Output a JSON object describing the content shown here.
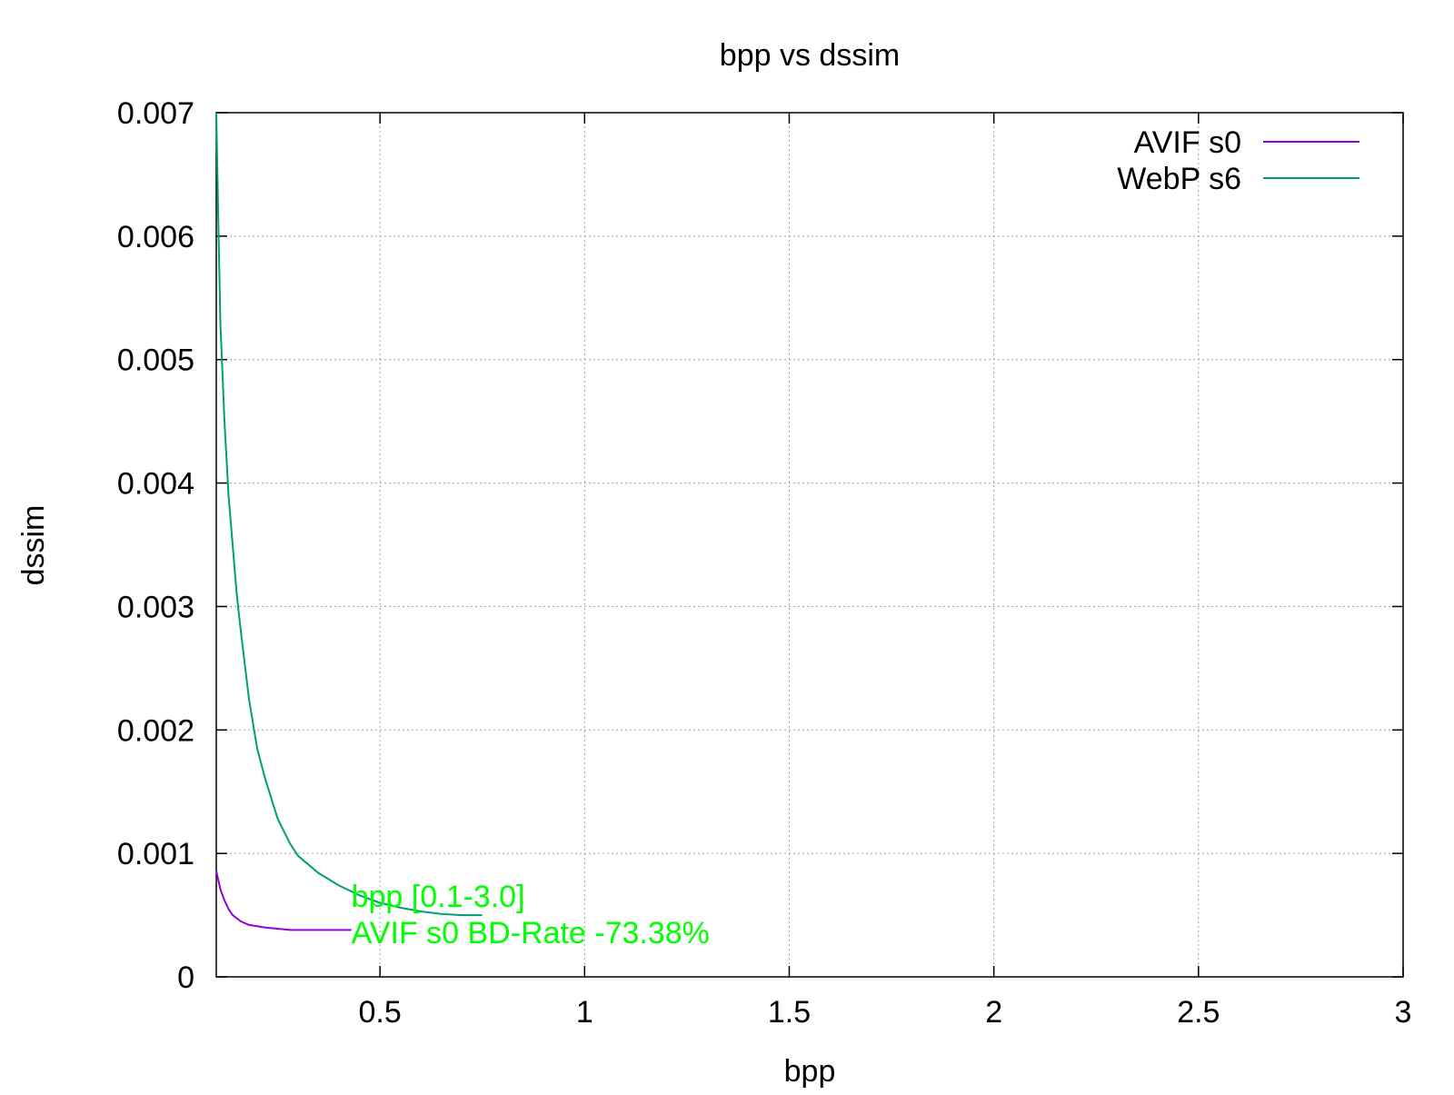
{
  "chart_data": {
    "type": "line",
    "title": "bpp vs dssim",
    "xlabel": "bpp",
    "ylabel": "dssim",
    "xlim": [
      0.1,
      3
    ],
    "ylim": [
      0,
      0.007
    ],
    "x_ticks": [
      {
        "value": 0.5,
        "label": "0.5"
      },
      {
        "value": 1,
        "label": "1"
      },
      {
        "value": 1.5,
        "label": "1.5"
      },
      {
        "value": 2,
        "label": "2"
      },
      {
        "value": 2.5,
        "label": "2.5"
      },
      {
        "value": 3,
        "label": "3"
      }
    ],
    "y_ticks": [
      {
        "value": 0,
        "label": "0"
      },
      {
        "value": 0.001,
        "label": "0.001"
      },
      {
        "value": 0.002,
        "label": "0.002"
      },
      {
        "value": 0.003,
        "label": "0.003"
      },
      {
        "value": 0.004,
        "label": "0.004"
      },
      {
        "value": 0.005,
        "label": "0.005"
      },
      {
        "value": 0.006,
        "label": "0.006"
      },
      {
        "value": 0.007,
        "label": "0.007"
      }
    ],
    "grid": true,
    "grid_color": "#a0a0a0",
    "legend_position": "top-right",
    "series": [
      {
        "name": "AVIF s0",
        "color": "#9400d3",
        "x": [
          0.1,
          0.105,
          0.11,
          0.12,
          0.13,
          0.14,
          0.16,
          0.18,
          0.2,
          0.22,
          0.25,
          0.28,
          0.3,
          0.35,
          0.4,
          0.43
        ],
        "y": [
          0.00086,
          0.00078,
          0.00071,
          0.00062,
          0.00055,
          0.0005,
          0.00045,
          0.00042,
          0.00041,
          0.0004,
          0.00039,
          0.00038,
          0.00038,
          0.00038,
          0.00038,
          0.00038
        ]
      },
      {
        "name": "WebP s6",
        "color": "#009e73",
        "x": [
          0.1,
          0.105,
          0.11,
          0.12,
          0.13,
          0.14,
          0.15,
          0.16,
          0.18,
          0.2,
          0.22,
          0.25,
          0.28,
          0.3,
          0.35,
          0.4,
          0.45,
          0.5,
          0.55,
          0.6,
          0.65,
          0.7,
          0.75
        ],
        "y": [
          0.007,
          0.0061,
          0.0053,
          0.0045,
          0.0039,
          0.0035,
          0.0031,
          0.0028,
          0.00225,
          0.00185,
          0.0016,
          0.00128,
          0.00108,
          0.00098,
          0.00084,
          0.00074,
          0.00066,
          0.0006,
          0.00056,
          0.00053,
          0.00051,
          0.0005,
          0.0005
        ]
      }
    ],
    "annotations": [
      {
        "text": "bpp [0.1-3.0]",
        "color": "#00ff00"
      },
      {
        "text": "AVIF s0 BD-Rate -73.38%",
        "color": "#00ff00"
      }
    ]
  }
}
